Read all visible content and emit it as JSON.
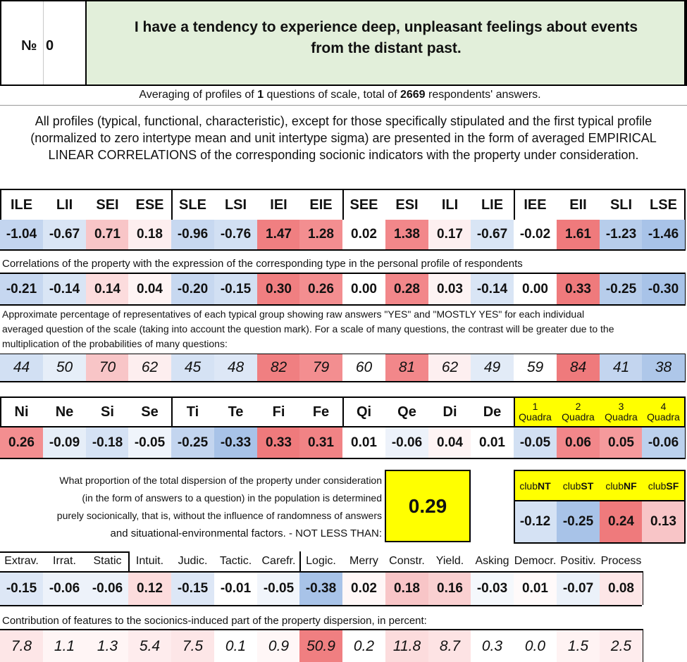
{
  "header": {
    "number_label": "№",
    "number_value": "0",
    "title_line1": "I have a tendency to experience deep, unpleasant feelings about events",
    "title_line2": "from the distant past.",
    "title_bg": "#e2efda"
  },
  "averaging": {
    "prefix": "Averaging of profiles of ",
    "questions": "1",
    "middle": " questions of scale, total of ",
    "respondents": "2669",
    "suffix": " respondents' answers."
  },
  "description": {
    "line1": "All profiles (typical, functional, characteristic), except for those specifically stipulated and the first typical profile",
    "line2": "(normalized to zero intertype mean and unit intertype sigma) are presented in the form of averaged EMPIRICAL",
    "line3": "LINEAR CORRELATIONS of the corresponding socionic indicators with the property under consideration."
  },
  "types": {
    "headers": [
      "ILE",
      "LII",
      "SEI",
      "ESE",
      "SLE",
      "LSI",
      "IEI",
      "EIE",
      "SEE",
      "ESI",
      "ILI",
      "LIE",
      "IEE",
      "EII",
      "SLI",
      "LSE"
    ],
    "normalized": [
      "-1.04",
      "-0.67",
      "0.71",
      "0.18",
      "-0.96",
      "-0.76",
      "1.47",
      "1.28",
      "0.02",
      "1.38",
      "0.17",
      "-0.67",
      "-0.02",
      "1.61",
      "-1.23",
      "-1.46"
    ],
    "normalized_colors": [
      "#c3d5ef",
      "#d9e5f5",
      "#f8c5c7",
      "#fdeeef",
      "#c7d8f0",
      "#d2e0f3",
      "#f07f81",
      "#f38e90",
      "#ffffff",
      "#f2878a",
      "#fdeff0",
      "#d9e5f5",
      "#ffffff",
      "#ef7a7c",
      "#b7cdeb",
      "#a8c3e8"
    ],
    "correlation_caption": "Correlations of the property with the expression of the corresponding type in the personal profile of respondents",
    "correlations": [
      "-0.21",
      "-0.14",
      "0.14",
      "0.04",
      "-0.20",
      "-0.15",
      "0.30",
      "0.26",
      "0.00",
      "0.28",
      "0.03",
      "-0.14",
      "0.00",
      "0.33",
      "-0.25",
      "-0.30"
    ],
    "correlation_colors": [
      "#c6d7f0",
      "#d9e5f5",
      "#fcdcdd",
      "#fef4f4",
      "#c7d8f0",
      "#d2e0f3",
      "#f07f81",
      "#f38e90",
      "#ffffff",
      "#f2878a",
      "#fdf3f3",
      "#d9e5f5",
      "#ffffff",
      "#ef7a7c",
      "#b7cdeb",
      "#a8c3e8"
    ],
    "percent_caption_line1": "Approximate percentage of representatives of each typical group showing raw answers \"YES\" and \"MOSTLY YES\" for each individual",
    "percent_caption_line2": "averaged question of the scale (taking into account the question mark). For a scale of many questions, the contrast will be greater due to the",
    "percent_caption_line3": "multiplication of the probabilities of many questions:",
    "percents": [
      "44",
      "50",
      "70",
      "62",
      "45",
      "48",
      "82",
      "79",
      "60",
      "81",
      "62",
      "49",
      "59",
      "84",
      "41",
      "38"
    ],
    "percent_colors": [
      "#d2e0f3",
      "#e6eef8",
      "#f8c5c7",
      "#fdeeef",
      "#d5e2f4",
      "#dde7f6",
      "#f07f81",
      "#f38e90",
      "#ffffff",
      "#f2878a",
      "#fdeff0",
      "#e2ebf7",
      "#ffffff",
      "#ef7a7c",
      "#c3d5ef",
      "#aec7e9"
    ]
  },
  "functions": {
    "headers": [
      "Ni",
      "Ne",
      "Si",
      "Se",
      "Ti",
      "Te",
      "Fi",
      "Fe",
      "Qi",
      "Qe",
      "Di",
      "De"
    ],
    "values": [
      "0.26",
      "-0.09",
      "-0.18",
      "-0.05",
      "-0.25",
      "-0.33",
      "0.33",
      "0.31",
      "0.01",
      "-0.06",
      "0.04",
      "0.01"
    ],
    "colors": [
      "#f38e90",
      "#e6eef8",
      "#d5e2f4",
      "#eff4fb",
      "#c3d5ef",
      "#a8c3e8",
      "#ef7a7c",
      "#f18385",
      "#ffffff",
      "#edf2fa",
      "#fef4f4",
      "#ffffff"
    ],
    "quadra_labels": [
      {
        "num": "1",
        "word": "Quadra"
      },
      {
        "num": "2",
        "word": "Quadra"
      },
      {
        "num": "3",
        "word": "Quadra"
      },
      {
        "num": "4",
        "word": "Quadra"
      }
    ],
    "quadra_bg": "#ffff00",
    "quadra_values": [
      "-0.05",
      "0.06",
      "0.05",
      "-0.06"
    ],
    "quadra_colors": [
      "#d2e0f3",
      "#f2878a",
      "#f59a9c",
      "#bcd1ed"
    ]
  },
  "dispersion": {
    "line1": "What proportion of the total dispersion of the property under consideration",
    "line2": "(in the form of answers to a question) in the population is determined",
    "line3": "purely socionically, that is, without the influence of randomness of answers",
    "line4": "and situational-environmental factors. - NOT LESS THAN:",
    "value": "0.29",
    "value_bg": "#ffff00"
  },
  "clubs": {
    "headers": [
      {
        "prefix": "club",
        "code": "NT"
      },
      {
        "prefix": "club",
        "code": "ST"
      },
      {
        "prefix": "club",
        "code": "NF"
      },
      {
        "prefix": "club",
        "code": "SF"
      }
    ],
    "values": [
      "-0.12",
      "-0.25",
      "0.24",
      "0.13"
    ],
    "colors": [
      "#d5e2f4",
      "#a8c3e8",
      "#ef7a7c",
      "#f8c5c7"
    ]
  },
  "traits": {
    "headers": [
      "Extrav.",
      "Irrat.",
      "Static",
      "Intuit.",
      "Judic.",
      "Tactic.",
      "Carefr.",
      "Logic.",
      "Merry",
      "Constr.",
      "Yield.",
      "Asking",
      "Democr.",
      "Positiv.",
      "Process"
    ],
    "values": [
      "-0.15",
      "-0.06",
      "-0.06",
      "0.12",
      "-0.15",
      "-0.01",
      "-0.05",
      "-0.38",
      "0.02",
      "0.18",
      "0.16",
      "-0.03",
      "0.01",
      "-0.07",
      "0.08"
    ],
    "colors": [
      "#dde7f6",
      "#edf2fa",
      "#edf2fa",
      "#fcdcdd",
      "#dde7f6",
      "#ffffff",
      "#f1f5fb",
      "#a8c3e8",
      "#fff7f7",
      "#f8c5c7",
      "#fad0d1",
      "#f5f8fc",
      "#fffafa",
      "#ebf1f9",
      "#fde6e7"
    ],
    "contribution_caption": "Contribution of features to the socionics-induced part of the property dispersion, in percent:",
    "contributions": [
      "7.8",
      "1.1",
      "1.3",
      "5.4",
      "7.5",
      "0.1",
      "0.9",
      "50.9",
      "0.2",
      "11.8",
      "8.7",
      "0.3",
      "0.0",
      "1.5",
      "2.5"
    ],
    "contribution_colors": [
      "#fde6e7",
      "#fff5f5",
      "#fff5f5",
      "#feeced",
      "#fde6e7",
      "#ffffff",
      "#fff7f7",
      "#f07f81",
      "#ffffff",
      "#fcdcdd",
      "#fde3e4",
      "#ffffff",
      "#ffffff",
      "#fff3f3",
      "#feeced"
    ]
  }
}
